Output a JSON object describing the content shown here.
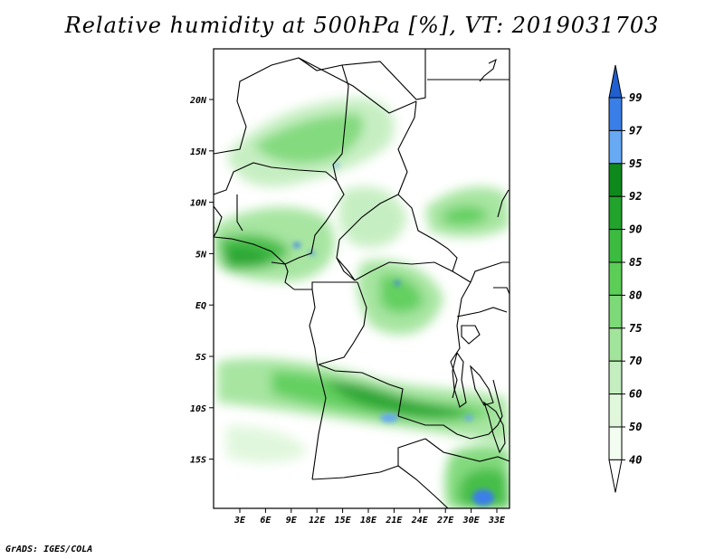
{
  "title": "Relative humidity at 500hPa [%], VT: 2019031703",
  "footer": "GrADS: IGES/COLA",
  "map": {
    "lat_labels": [
      "20N",
      "15N",
      "10N",
      "5N",
      "EQ",
      "5S",
      "10S",
      "15S"
    ],
    "lon_labels": [
      "3E",
      "6E",
      "9E",
      "12E",
      "15E",
      "18E",
      "21E",
      "24E",
      "27E",
      "30E",
      "33E"
    ]
  },
  "colorbar": {
    "levels": [
      "99",
      "97",
      "95",
      "92",
      "90",
      "85",
      "80",
      "75",
      "70",
      "60",
      "50",
      "40"
    ],
    "colors": [
      "#1f5fcf",
      "#3a7fe8",
      "#68a9f4",
      "#0e8a1c",
      "#22a32c",
      "#3cbb40",
      "#5cce58",
      "#7ed978",
      "#a3e49c",
      "#c4eec0",
      "#e0f7dc",
      "#f2fcf0"
    ]
  }
}
